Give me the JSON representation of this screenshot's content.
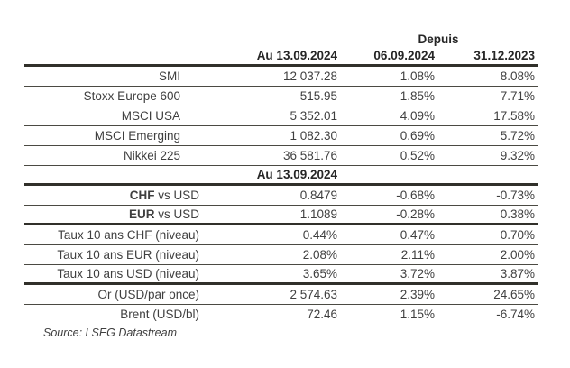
{
  "table": {
    "depuis_label": "Depuis",
    "col_au": "Au 13.09.2024",
    "col_since_1": "06.09.2024",
    "col_since_2": "31.12.2023",
    "mid_header": "Au 13.09.2024",
    "sections": [
      {
        "name": "equity-indices",
        "rows": [
          {
            "label": "SMI",
            "value": "12 037.28",
            "since_1": "1.08%",
            "since_2": "8.08%"
          },
          {
            "label": "Stoxx Europe 600",
            "value": "515.95",
            "since_1": "1.85%",
            "since_2": "7.71%"
          },
          {
            "label": "MSCI USA",
            "value": "5 352.01",
            "since_1": "4.09%",
            "since_2": "17.58%"
          },
          {
            "label": "MSCI Emerging",
            "value": "1 082.30",
            "since_1": "0.69%",
            "since_2": "5.72%"
          },
          {
            "label": "Nikkei 225",
            "value": "36 581.76",
            "since_1": "0.52%",
            "since_2": "9.32%"
          }
        ]
      },
      {
        "name": "currencies",
        "rows": [
          {
            "label_bold": "CHF",
            "label": " vs USD",
            "value": "0.8479",
            "since_1": "-0.68%",
            "since_2": "-0.73%"
          },
          {
            "label_bold": "EUR",
            "label": " vs USD",
            "value": "1.1089",
            "since_1": "-0.28%",
            "since_2": "0.38%"
          }
        ]
      },
      {
        "name": "rates-10y",
        "rows": [
          {
            "label": "Taux 10 ans CHF (niveau)",
            "value": "0.44%",
            "since_1": "0.47%",
            "since_2": "0.70%"
          },
          {
            "label": "Taux 10 ans EUR (niveau)",
            "value": "2.08%",
            "since_1": "2.11%",
            "since_2": "2.00%"
          },
          {
            "label": "Taux 10 ans USD (niveau)",
            "value": "3.65%",
            "since_1": "3.72%",
            "since_2": "3.87%"
          }
        ]
      },
      {
        "name": "commodities",
        "rows": [
          {
            "label": "Or (USD/par once)",
            "value": "2 574.63",
            "since_1": "2.39%",
            "since_2": "24.65%"
          },
          {
            "label": "Brent (USD/bl)",
            "value": "72.46",
            "since_1": "1.15%",
            "since_2": "-6.74%"
          }
        ]
      }
    ]
  },
  "source_note": "Source: LSEG Datastream",
  "colors": {
    "text": "#3f3f3f",
    "header_text": "#262626",
    "line_thick": "#31302a",
    "line_thin": "#4b4a43"
  }
}
